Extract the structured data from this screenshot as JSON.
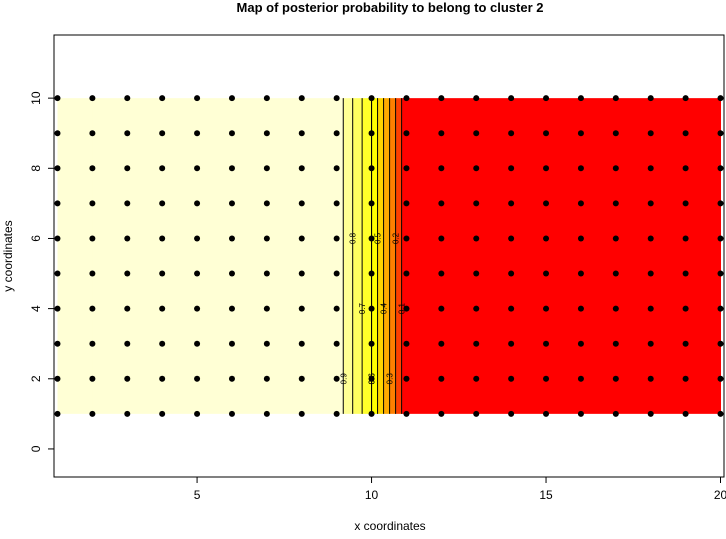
{
  "chart_data": {
    "type": "filled-contour",
    "title": "Map of posterior probability to belong to cluster  2",
    "xlabel": "x coordinates",
    "ylabel": "y coordinates",
    "xlim": [
      0.9,
      20.1
    ],
    "ylim": [
      -0.8,
      11.8
    ],
    "xticks": [
      5,
      10,
      15,
      20
    ],
    "yticks": [
      0,
      2,
      4,
      6,
      8,
      10
    ],
    "grid_x": [
      1,
      2,
      3,
      4,
      5,
      6,
      7,
      8,
      9,
      10,
      11,
      12,
      13,
      14,
      15,
      16,
      17,
      18,
      19,
      20
    ],
    "grid_y": [
      1,
      2,
      3,
      4,
      5,
      6,
      7,
      8,
      9,
      10
    ],
    "z": [
      1,
      1,
      1,
      1,
      1,
      1,
      1,
      1,
      0.97,
      0.6,
      0.02,
      0,
      0,
      0,
      0,
      0,
      0,
      0,
      0,
      0
    ],
    "levels": [
      0,
      0.1,
      0.2,
      0.3,
      0.4,
      0.5,
      0.6,
      0.7,
      0.8,
      0.9,
      1
    ],
    "colors": [
      "#ff0000",
      "#ff4000",
      "#ff8000",
      "#ffaa00",
      "#ffd400",
      "#ffff00",
      "#ffff2a",
      "#ffff60",
      "#ffff95",
      "#ffffd5"
    ],
    "point_color": "#000000"
  }
}
